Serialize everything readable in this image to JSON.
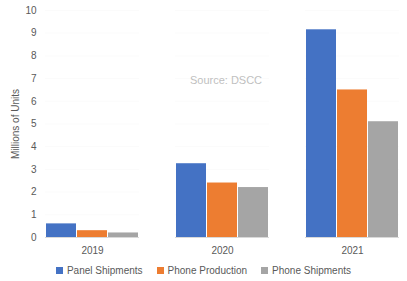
{
  "chart_data": {
    "type": "bar",
    "ylabel": "Millions of Units",
    "annotations": [
      "Source: DSCC"
    ],
    "categories": [
      "2019",
      "2020",
      "2021"
    ],
    "series": [
      {
        "name": "Panel Shipments",
        "color": "#4472c4",
        "values": [
          0.6,
          3.25,
          9.15
        ]
      },
      {
        "name": "Phone Production",
        "color": "#ed7d31",
        "values": [
          0.3,
          2.4,
          6.5
        ]
      },
      {
        "name": "Phone Shipments",
        "color": "#a5a5a5",
        "values": [
          0.2,
          2.2,
          5.1
        ]
      }
    ],
    "ylim": [
      0,
      10
    ],
    "yticks": [
      0,
      1,
      2,
      3,
      4,
      5,
      6,
      7,
      8,
      9,
      10
    ],
    "grid": true,
    "legend": "bottom"
  }
}
